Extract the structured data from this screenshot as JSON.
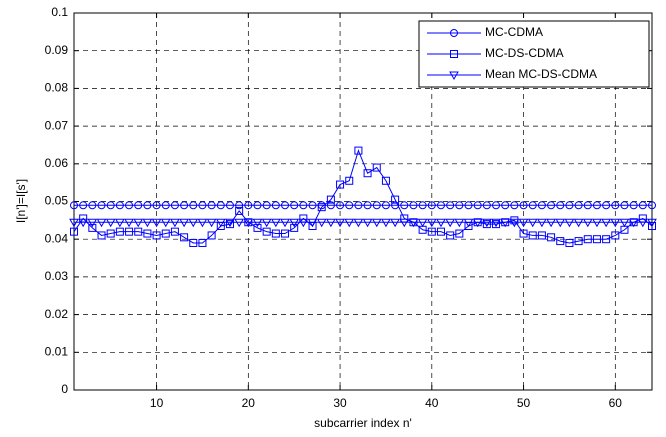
{
  "chart_data": {
    "type": "line",
    "x": [
      1,
      2,
      3,
      4,
      5,
      6,
      7,
      8,
      9,
      10,
      11,
      12,
      13,
      14,
      15,
      16,
      17,
      18,
      19,
      20,
      21,
      22,
      23,
      24,
      25,
      26,
      27,
      28,
      29,
      30,
      31,
      32,
      33,
      34,
      35,
      36,
      37,
      38,
      39,
      40,
      41,
      42,
      43,
      44,
      45,
      46,
      47,
      48,
      49,
      50,
      51,
      52,
      53,
      54,
      55,
      56,
      57,
      58,
      59,
      60,
      61,
      62,
      63,
      64
    ],
    "xlabel": "subcarrier index n'",
    "ylabel": "I[n']=I[s']",
    "xlim": [
      1,
      64
    ],
    "xticks": [
      10,
      20,
      30,
      40,
      50,
      60
    ],
    "ylim": [
      0,
      0.1
    ],
    "yticks": [
      0,
      0.01,
      0.02,
      0.03,
      0.04,
      0.05,
      0.06,
      0.07,
      0.08,
      0.09,
      0.1
    ],
    "grid": true,
    "legend": "upper right",
    "series": [
      {
        "name": "MC-CDMA",
        "color": "#0000ff",
        "marker": "circle",
        "values": [
          0.049,
          0.049,
          0.049,
          0.049,
          0.049,
          0.049,
          0.049,
          0.049,
          0.049,
          0.049,
          0.049,
          0.049,
          0.049,
          0.049,
          0.049,
          0.049,
          0.049,
          0.049,
          0.049,
          0.049,
          0.049,
          0.049,
          0.049,
          0.049,
          0.049,
          0.049,
          0.049,
          0.049,
          0.049,
          0.049,
          0.049,
          0.049,
          0.049,
          0.049,
          0.049,
          0.049,
          0.049,
          0.049,
          0.049,
          0.049,
          0.049,
          0.049,
          0.049,
          0.049,
          0.049,
          0.049,
          0.049,
          0.049,
          0.049,
          0.049,
          0.049,
          0.049,
          0.049,
          0.049,
          0.049,
          0.049,
          0.049,
          0.049,
          0.049,
          0.049,
          0.049,
          0.049,
          0.049,
          0.049
        ]
      },
      {
        "name": "MC-DS-CDMA",
        "color": "#0000ff",
        "marker": "square",
        "values": [
          0.042,
          0.0455,
          0.043,
          0.041,
          0.0415,
          0.042,
          0.042,
          0.042,
          0.0415,
          0.041,
          0.0415,
          0.042,
          0.0405,
          0.039,
          0.039,
          0.041,
          0.0435,
          0.044,
          0.0475,
          0.0445,
          0.043,
          0.042,
          0.0415,
          0.0415,
          0.043,
          0.0455,
          0.0435,
          0.0485,
          0.0505,
          0.0545,
          0.0555,
          0.0635,
          0.0575,
          0.059,
          0.0555,
          0.0505,
          0.0455,
          0.0445,
          0.0425,
          0.042,
          0.042,
          0.041,
          0.0415,
          0.0435,
          0.0445,
          0.044,
          0.044,
          0.0445,
          0.045,
          0.0415,
          0.041,
          0.041,
          0.0405,
          0.0395,
          0.039,
          0.0395,
          0.04,
          0.04,
          0.04,
          0.041,
          0.0425,
          0.0445,
          0.0455,
          0.0435
        ]
      },
      {
        "name": "Mean MC-DS-CDMA",
        "color": "#0000ff",
        "marker": "triangle-down",
        "values": [
          0.0445,
          0.0445,
          0.0445,
          0.0445,
          0.0445,
          0.0445,
          0.0445,
          0.0445,
          0.0445,
          0.0445,
          0.0445,
          0.0445,
          0.0445,
          0.0445,
          0.0445,
          0.0445,
          0.0445,
          0.0445,
          0.0445,
          0.0445,
          0.0445,
          0.0445,
          0.0445,
          0.0445,
          0.0445,
          0.0445,
          0.0445,
          0.0445,
          0.0445,
          0.0445,
          0.0445,
          0.0445,
          0.0445,
          0.0445,
          0.0445,
          0.0445,
          0.0445,
          0.0445,
          0.0445,
          0.0445,
          0.0445,
          0.0445,
          0.0445,
          0.0445,
          0.0445,
          0.0445,
          0.0445,
          0.0445,
          0.0445,
          0.0445,
          0.0445,
          0.0445,
          0.0445,
          0.0445,
          0.0445,
          0.0445,
          0.0445,
          0.0445,
          0.0445,
          0.0445,
          0.0445,
          0.0445,
          0.0445,
          0.0445
        ]
      }
    ]
  }
}
